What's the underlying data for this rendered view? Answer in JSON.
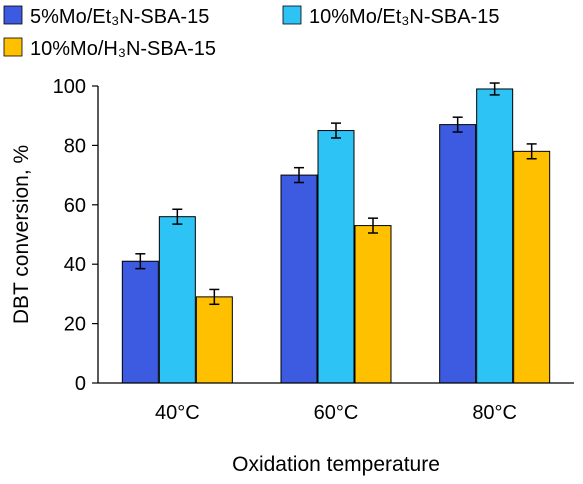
{
  "chart_data": {
    "type": "bar",
    "title": "",
    "xlabel": "Oxidation temperature",
    "ylabel": "DBT conversion, %",
    "ylim": [
      0,
      100
    ],
    "yticks": [
      "0",
      "20",
      "40",
      "60",
      "80",
      "100"
    ],
    "categories": [
      "40°C",
      "60°C",
      "80°C"
    ],
    "series": [
      {
        "name": "5%Mo/Et₃N-SBA-15",
        "color": "#3C5BE0",
        "values": [
          41,
          70,
          87
        ],
        "errors": [
          2.5,
          2.5,
          2.5
        ]
      },
      {
        "name": "10%Mo/Et₃N-SBA-15",
        "color": "#2EC3F5",
        "values": [
          56,
          85,
          99
        ],
        "errors": [
          2.5,
          2.5,
          2
        ]
      },
      {
        "name": "10%Mo/H₃N-SBA-15",
        "color": "#FFC000",
        "values": [
          29,
          53,
          78
        ],
        "errors": [
          2.5,
          2.5,
          2.5
        ]
      }
    ],
    "legend_position": "top",
    "grid": false
  }
}
